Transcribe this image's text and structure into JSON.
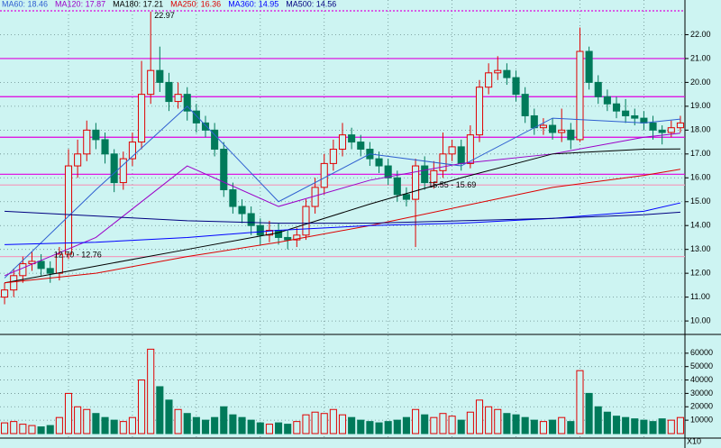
{
  "chart_data": [
    {
      "type": "candlestick",
      "open": [
        11.0,
        11.3,
        11.9,
        12.4,
        12.5,
        12.2,
        12.0,
        12.8,
        16.5,
        17.0,
        18.0,
        17.6,
        17.0,
        15.8,
        16.8,
        17.5,
        19.5,
        20.5,
        20.0,
        19.2,
        19.5,
        18.8,
        18.3,
        18.0,
        17.2,
        15.5,
        14.8,
        14.5,
        14.0,
        13.6,
        13.8,
        13.5,
        13.4,
        13.6,
        14.8,
        15.6,
        16.6,
        17.2,
        17.8,
        17.5,
        17.2,
        16.8,
        16.5,
        16.0,
        15.3,
        15.1,
        16.5,
        15.8,
        16.3,
        17.0,
        17.3,
        16.6,
        17.8,
        19.8,
        20.4,
        20.5,
        20.2,
        19.5,
        18.6,
        18.1,
        18.2,
        17.9,
        18.0,
        17.6,
        21.3,
        20.0,
        19.4,
        19.1,
        18.8,
        18.6,
        18.5,
        18.3,
        18.0,
        17.9,
        18.1
      ],
      "high": [
        11.6,
        12.2,
        12.7,
        12.9,
        12.8,
        12.5,
        13.1,
        17.2,
        17.6,
        18.4,
        18.3,
        17.9,
        17.2,
        17.1,
        17.9,
        20.9,
        22.97,
        21.5,
        20.4,
        20.0,
        19.8,
        19.1,
        18.6,
        18.3,
        17.5,
        15.8,
        15.1,
        14.8,
        14.3,
        14.2,
        14.1,
        13.8,
        13.9,
        15.1,
        16.0,
        17.0,
        17.6,
        18.3,
        18.1,
        17.8,
        17.5,
        17.1,
        16.8,
        16.3,
        15.6,
        16.8,
        16.9,
        16.7,
        17.9,
        17.6,
        17.6,
        18.2,
        20.1,
        20.8,
        21.1,
        20.8,
        20.5,
        19.8,
        18.9,
        18.5,
        18.5,
        18.9,
        18.3,
        22.3,
        21.5,
        20.3,
        19.7,
        19.4,
        19.3,
        18.9,
        18.8,
        18.6,
        18.2,
        18.4,
        18.6
      ],
      "low": [
        10.7,
        11.0,
        11.6,
        12.1,
        11.9,
        11.6,
        11.7,
        12.6,
        16.0,
        16.7,
        17.2,
        16.6,
        15.4,
        15.5,
        16.5,
        17.2,
        19.1,
        19.6,
        18.8,
        18.9,
        18.4,
        17.9,
        17.7,
        16.9,
        15.2,
        14.5,
        14.1,
        13.6,
        13.2,
        13.3,
        13.2,
        13.0,
        13.1,
        13.4,
        14.5,
        15.3,
        16.3,
        16.9,
        17.2,
        16.9,
        16.5,
        16.2,
        15.7,
        15.0,
        14.8,
        13.1,
        15.5,
        15.55,
        16.0,
        16.7,
        16.3,
        16.4,
        17.5,
        19.5,
        20.1,
        19.9,
        19.2,
        18.3,
        17.8,
        17.8,
        17.6,
        17.5,
        17.2,
        17.5,
        19.7,
        19.1,
        18.8,
        18.5,
        18.3,
        18.2,
        18.0,
        17.6,
        17.4,
        17.7,
        17.9
      ],
      "close": [
        11.3,
        11.9,
        12.4,
        12.5,
        12.2,
        12.0,
        12.8,
        16.5,
        17.0,
        18.0,
        17.6,
        17.0,
        15.8,
        16.8,
        17.5,
        19.5,
        20.5,
        20.0,
        19.2,
        19.5,
        18.8,
        18.3,
        18.0,
        17.2,
        15.5,
        14.8,
        14.5,
        14.0,
        13.6,
        13.8,
        13.5,
        13.4,
        13.6,
        14.8,
        15.6,
        16.6,
        17.2,
        17.8,
        17.5,
        17.2,
        16.8,
        16.5,
        16.0,
        15.3,
        15.1,
        16.5,
        15.8,
        16.3,
        17.0,
        17.3,
        16.6,
        17.8,
        19.8,
        20.4,
        20.5,
        20.2,
        19.5,
        18.6,
        18.1,
        18.2,
        17.9,
        18.0,
        17.6,
        21.3,
        20.0,
        19.4,
        19.1,
        18.8,
        18.6,
        18.5,
        18.3,
        18.0,
        17.9,
        18.1,
        18.3
      ],
      "up_color": "#e00000",
      "down_color": "#007a5a",
      "series": [
        {
          "name": "MA60: 18.46",
          "color": "#2f5fd0",
          "x": [
            0,
            10,
            20,
            30,
            40,
            50,
            60,
            70,
            74
          ],
          "values": [
            11.8,
            15.5,
            19.0,
            15.0,
            17.0,
            16.5,
            18.5,
            18.3,
            18.46
          ]
        },
        {
          "name": "MA120: 17.87",
          "color": "#9b00c8",
          "x": [
            0,
            10,
            20,
            30,
            40,
            50,
            60,
            70,
            74
          ],
          "values": [
            11.9,
            13.5,
            16.5,
            14.8,
            15.9,
            16.6,
            17.0,
            17.7,
            17.87
          ]
        },
        {
          "name": "MA180: 17.21",
          "color": "#000000",
          "x": [
            0,
            10,
            20,
            30,
            40,
            50,
            60,
            70,
            74
          ],
          "values": [
            11.6,
            12.3,
            13.0,
            13.7,
            14.9,
            16.0,
            17.0,
            17.2,
            17.21
          ]
        },
        {
          "name": "MA250: 16.36",
          "color": "#dd0000",
          "x": [
            0,
            10,
            20,
            30,
            40,
            50,
            60,
            70,
            74
          ],
          "values": [
            11.6,
            12.0,
            12.7,
            13.3,
            14.0,
            14.8,
            15.6,
            16.1,
            16.36
          ]
        },
        {
          "name": "MA360: 14.95",
          "color": "#0000ff",
          "x": [
            0,
            10,
            20,
            30,
            40,
            50,
            60,
            70,
            74
          ],
          "values": [
            13.2,
            13.3,
            13.5,
            13.8,
            14.0,
            14.1,
            14.3,
            14.6,
            14.95
          ]
        },
        {
          "name": "MA500: 14.56",
          "color": "#000080",
          "x": [
            0,
            10,
            20,
            30,
            40,
            50,
            60,
            70,
            74
          ],
          "values": [
            14.6,
            14.4,
            14.2,
            14.1,
            14.1,
            14.2,
            14.3,
            14.45,
            14.56
          ]
        }
      ],
      "reference_lines": [
        {
          "value": 23.0,
          "color": "#e000e0"
        },
        {
          "value": 21.0,
          "color": "#e000e0"
        },
        {
          "value": 19.4,
          "color": "#e000e0"
        },
        {
          "value": 17.7,
          "color": "#e000e0"
        },
        {
          "value": 16.15,
          "color": "#e000e0"
        },
        {
          "value": 15.7,
          "color": "#f0a0c0"
        },
        {
          "value": 12.7,
          "color": "#f0a0c0"
        }
      ],
      "annotations": [
        {
          "text": "22.97",
          "index": 16,
          "value": 22.97
        },
        {
          "text": "12.70 - 12.76",
          "index": 5,
          "value": 12.76
        },
        {
          "text": "15.55 - 15.69",
          "index": 46,
          "value": 15.69
        }
      ],
      "ylim": [
        9.55,
        23.0
      ],
      "yticks": [
        {
          "value": 10,
          "label": "10.00"
        },
        {
          "value": 11,
          "label": "11.00"
        },
        {
          "value": 12,
          "label": "12.00"
        },
        {
          "value": 13,
          "label": "13.00"
        },
        {
          "value": 14,
          "label": "14.00"
        },
        {
          "value": 15,
          "label": "15.00"
        },
        {
          "value": 16,
          "label": "16.00"
        },
        {
          "value": 17,
          "label": "17.00"
        },
        {
          "value": 18,
          "label": "18.00"
        },
        {
          "value": 19,
          "label": "19.00"
        },
        {
          "value": 20,
          "label": "20.00"
        },
        {
          "value": 21,
          "label": "21.00"
        },
        {
          "value": 22,
          "label": "22.00"
        }
      ],
      "grid": true
    },
    {
      "type": "volume",
      "values": [
        8000,
        9000,
        7000,
        6000,
        5000,
        6000,
        12000,
        30000,
        20000,
        18000,
        15000,
        12000,
        10000,
        9000,
        12000,
        40000,
        63000,
        35000,
        25000,
        18000,
        15000,
        12000,
        10000,
        12000,
        20000,
        14000,
        12000,
        10000,
        8000,
        7000,
        8000,
        7000,
        9000,
        14000,
        16000,
        15000,
        18000,
        14000,
        12000,
        10000,
        9000,
        8000,
        9000,
        10000,
        12000,
        18000,
        14000,
        12000,
        15000,
        13000,
        10000,
        16000,
        25000,
        20000,
        18000,
        15000,
        14000,
        12000,
        10000,
        9000,
        10000,
        12000,
        9000,
        47000,
        30000,
        20000,
        16000,
        13000,
        12000,
        11000,
        10000,
        9000,
        11000,
        10000,
        12000
      ],
      "ylim": [
        0,
        72000
      ],
      "yticks": [
        10000,
        20000,
        30000,
        40000,
        50000,
        60000
      ],
      "unit_label": "X10",
      "grid": true
    }
  ]
}
